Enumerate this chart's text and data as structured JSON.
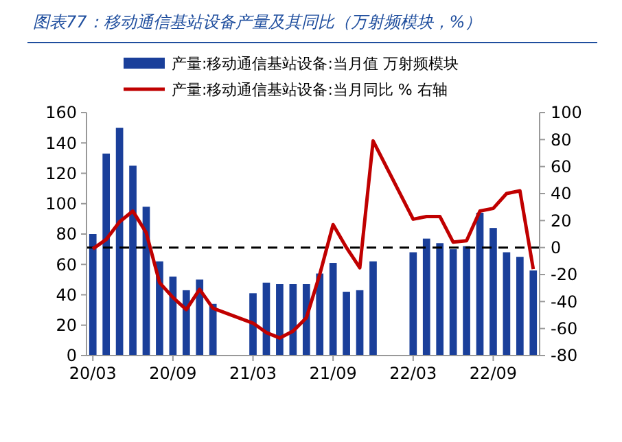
{
  "chart_data": {
    "type": "bar",
    "title": "图表77：移动通信基站设备产量及其同比（万射频模块，%）",
    "categories": [
      "20/03",
      null,
      null,
      null,
      null,
      null,
      "20/09",
      null,
      null,
      null,
      null,
      null,
      "21/03",
      null,
      null,
      null,
      null,
      null,
      "21/09",
      null,
      null,
      null,
      null,
      null,
      "22/03",
      null,
      null,
      null,
      null,
      null,
      "22/09",
      null,
      null,
      null
    ],
    "series": [
      {
        "name": "产量:移动通信基站设备:当月值 万射频模块",
        "color": "#1a3f9a",
        "values": [
          80,
          133,
          150,
          125,
          98,
          62,
          52,
          43,
          50,
          34,
          null,
          null,
          41,
          48,
          47,
          47,
          47,
          54,
          61,
          42,
          43,
          62,
          null,
          null,
          68,
          77,
          74,
          70,
          72,
          94,
          84,
          68,
          65,
          56
        ]
      },
      {
        "name": "产量:移动通信基站设备:当月同比 % 右轴",
        "type": "line",
        "axis": "y2",
        "color": "#c00000",
        "values": [
          -1,
          6,
          19,
          27,
          11,
          -26,
          -37,
          -46,
          -31,
          -45,
          null,
          null,
          -56,
          -63,
          -67,
          -62,
          -52,
          -20,
          17,
          0,
          -15,
          79,
          null,
          null,
          21,
          23,
          23,
          4,
          5,
          27,
          29,
          40,
          42,
          -16
        ]
      }
    ],
    "ylim": [
      0,
      160
    ],
    "yticks": [
      0,
      20,
      40,
      60,
      80,
      100,
      120,
      140,
      160
    ],
    "y2lim": [
      -80,
      100
    ],
    "y2ticks": [
      -80,
      -60,
      -40,
      -20,
      0,
      20,
      40,
      60,
      80,
      100
    ],
    "ref_lines": [
      {
        "axis": "y2",
        "value": 0,
        "color": "#000000",
        "line_style": "dashed"
      }
    ],
    "legend": "top",
    "grid": false
  }
}
